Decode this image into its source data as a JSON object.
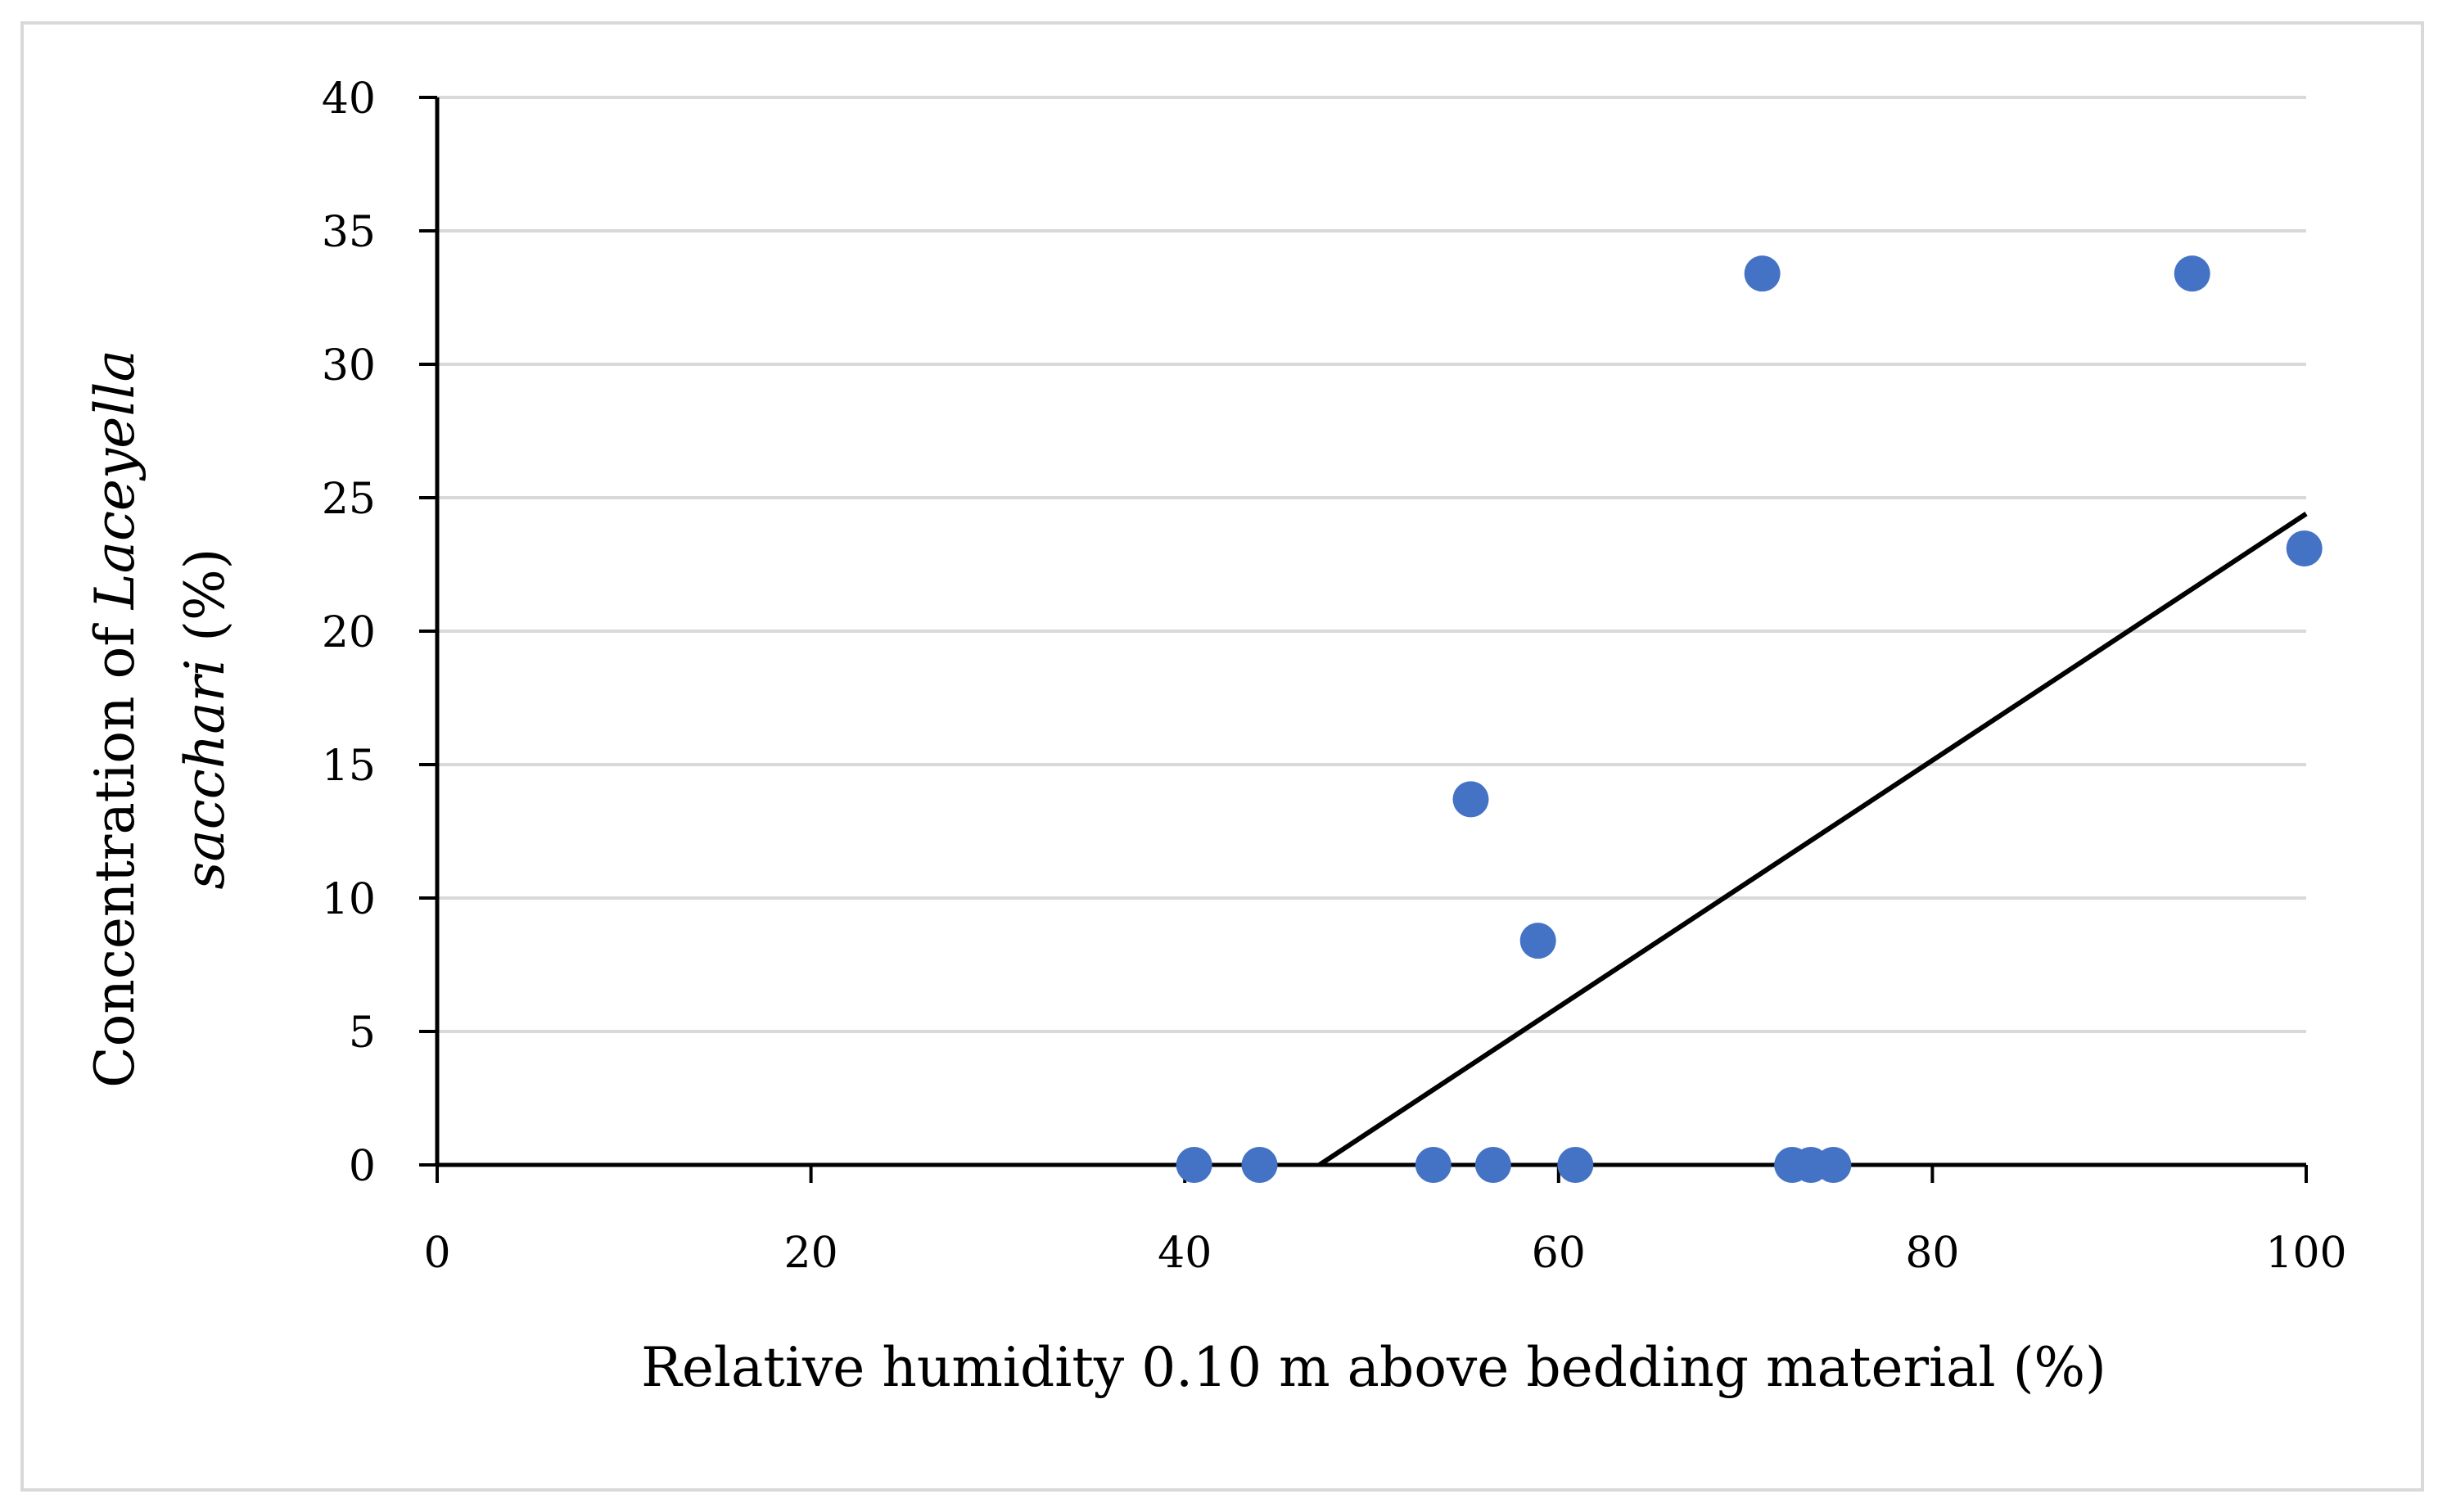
{
  "chart_data": {
    "type": "scatter",
    "title": "",
    "xlabel": "Relative humidity 0.10 m above bedding material (%)",
    "ylabel": {
      "line1": {
        "prefix": "Concentration of ",
        "italic": "Laceyella"
      },
      "line2": {
        "italic": "sacchari",
        "suffix": " (%)"
      }
    },
    "xlim": [
      0,
      100
    ],
    "ylim": [
      0,
      40
    ],
    "x_ticks": [
      0,
      20,
      40,
      60,
      80,
      100
    ],
    "y_ticks": [
      0,
      5,
      10,
      15,
      20,
      25,
      30,
      35,
      40
    ],
    "grid": "horizontal",
    "legend": "none",
    "marker_color": "#4472C4",
    "trendline_color": "#000000",
    "series": [
      {
        "name": "Laceyella sacchari",
        "x": [
          40.5,
          44.0,
          53.3,
          55.3,
          56.5,
          58.9,
          60.9,
          70.9,
          72.5,
          73.5,
          74.7,
          93.9,
          99.9
        ],
        "y": [
          0,
          0,
          0,
          13.7,
          0,
          8.4,
          0,
          33.4,
          0,
          0,
          0,
          33.4,
          23.1
        ]
      }
    ],
    "trendline": {
      "x": [
        47.2,
        100
      ],
      "y": [
        0,
        24.4
      ]
    }
  }
}
